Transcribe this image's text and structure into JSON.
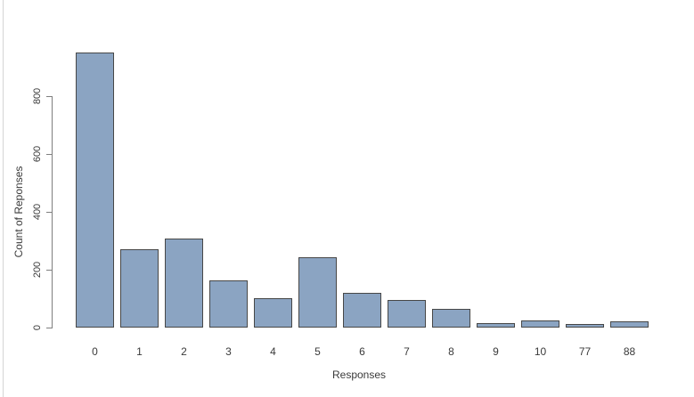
{
  "window": {
    "background": "#ffffff",
    "edge_line_color": "#d4d4d4"
  },
  "chart_data": {
    "type": "bar",
    "title": "",
    "xlabel": "Responses",
    "ylabel": "Count of Reponses",
    "categories": [
      "0",
      "1",
      "2",
      "3",
      "4",
      "5",
      "6",
      "7",
      "8",
      "9",
      "10",
      "77",
      "88"
    ],
    "values": [
      950,
      271,
      309,
      164,
      102,
      242,
      119,
      96,
      65,
      15,
      24,
      13,
      22
    ],
    "ylim": [
      0,
      800
    ],
    "yticks": [
      0,
      200,
      400,
      600,
      800
    ],
    "grid": false,
    "legend_position": "none",
    "bar_fill": "#8BA4C2",
    "bar_border": "#474747",
    "axis_color": "#7f7f7f",
    "text_color": "#3a3a3a"
  }
}
